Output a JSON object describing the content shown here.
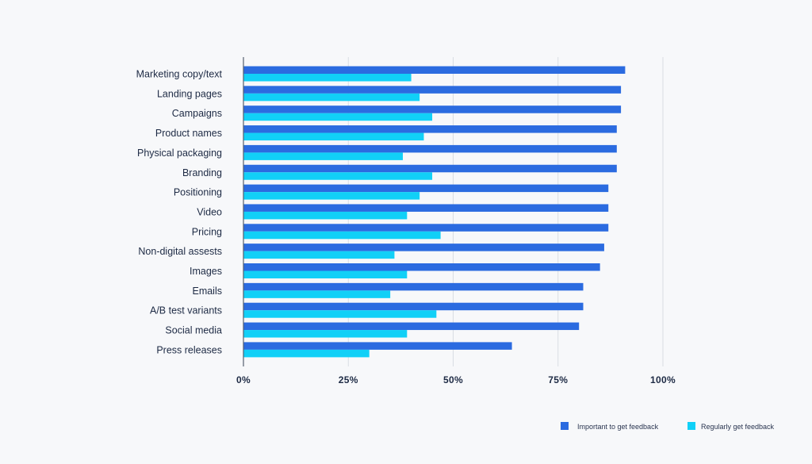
{
  "colors": {
    "background": "#f7f8fa",
    "important": "#2b6be0",
    "regularly": "#11d0f7",
    "grid": "#d9dde3",
    "axis": "#555f6e",
    "text": "#1d2a44"
  },
  "legend": {
    "important_label": "Important to get feedback",
    "regularly_label": "Regularly get feedback"
  },
  "chart_data": {
    "type": "bar",
    "orientation": "horizontal",
    "categories": [
      "Marketing copy/text",
      "Landing pages",
      "Campaigns",
      "Product names",
      "Physical packaging",
      "Branding",
      "Positioning",
      "Video",
      "Pricing",
      "Non-digital assests",
      "Images",
      "Emails",
      "A/B test variants",
      "Social media",
      "Press releases"
    ],
    "series": [
      {
        "name": "Important to get feedback",
        "values": [
          91,
          90,
          90,
          89,
          89,
          89,
          87,
          87,
          87,
          86,
          85,
          81,
          81,
          80,
          64
        ]
      },
      {
        "name": "Regularly get feedback",
        "values": [
          40,
          42,
          45,
          43,
          38,
          45,
          42,
          39,
          47,
          36,
          39,
          35,
          46,
          39,
          30
        ]
      }
    ],
    "xlim": [
      0,
      100
    ],
    "xticks": [
      "0%",
      "25%",
      "50%",
      "75%",
      "100%"
    ],
    "xtick_values": [
      0,
      25,
      50,
      75,
      100
    ],
    "grid": true,
    "legend_position": "bottom-right",
    "title": "",
    "xlabel": "",
    "ylabel": ""
  }
}
